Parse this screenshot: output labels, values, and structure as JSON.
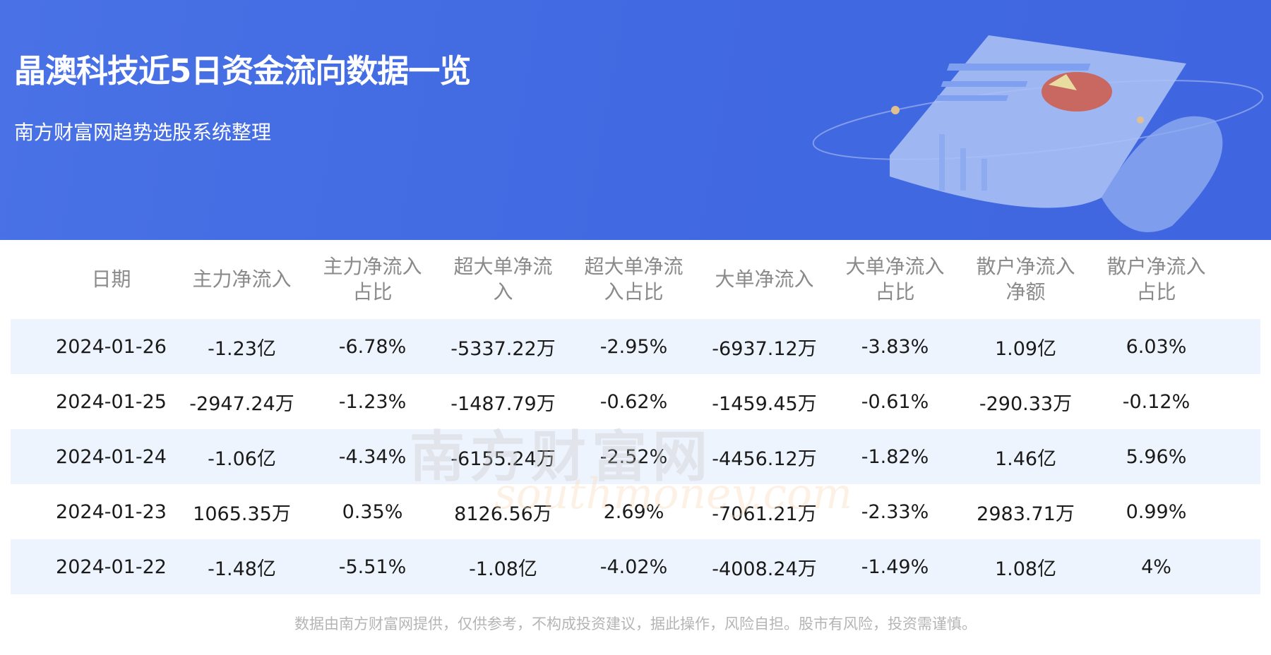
{
  "header": {
    "title": "晶澳科技近5日资金流向数据一览",
    "subtitle": "南方财富网趋势选股系统整理"
  },
  "table": {
    "columns": [
      "日期",
      "主力净流入",
      "主力净流入\n占比",
      "超大单净流\n入",
      "超大单净流\n入占比",
      "大单净流入",
      "大单净流入\n占比",
      "散户净流入\n净额",
      "散户净流入\n占比"
    ],
    "rows": [
      [
        "2024-01-26",
        "-1.23亿",
        "-6.78%",
        "-5337.22万",
        "-2.95%",
        "-6937.12万",
        "-3.83%",
        "1.09亿",
        "6.03%"
      ],
      [
        "2024-01-25",
        "-2947.24万",
        "-1.23%",
        "-1487.79万",
        "-0.62%",
        "-1459.45万",
        "-0.61%",
        "-290.33万",
        "-0.12%"
      ],
      [
        "2024-01-24",
        "-1.06亿",
        "-4.34%",
        "-6155.24万",
        "-2.52%",
        "-4456.12万",
        "-1.82%",
        "1.46亿",
        "5.96%"
      ],
      [
        "2024-01-23",
        "1065.35万",
        "0.35%",
        "8126.56万",
        "2.69%",
        "-7061.21万",
        "-2.33%",
        "2983.71万",
        "0.99%"
      ],
      [
        "2024-01-22",
        "-1.48亿",
        "-5.51%",
        "-1.08亿",
        "-4.02%",
        "-4008.24万",
        "-1.49%",
        "1.08亿",
        "4%"
      ]
    ]
  },
  "watermark": {
    "cn": "南方财富网",
    "en": "southmoney.com"
  },
  "footer": "数据由南方财富网提供，仅供参考，不构成投资建议，据此操作，风险自担。股市有风险，投资需谨慎。",
  "colors": {
    "header_bg": "#4169e1",
    "row_shade": "#eef4fd"
  }
}
